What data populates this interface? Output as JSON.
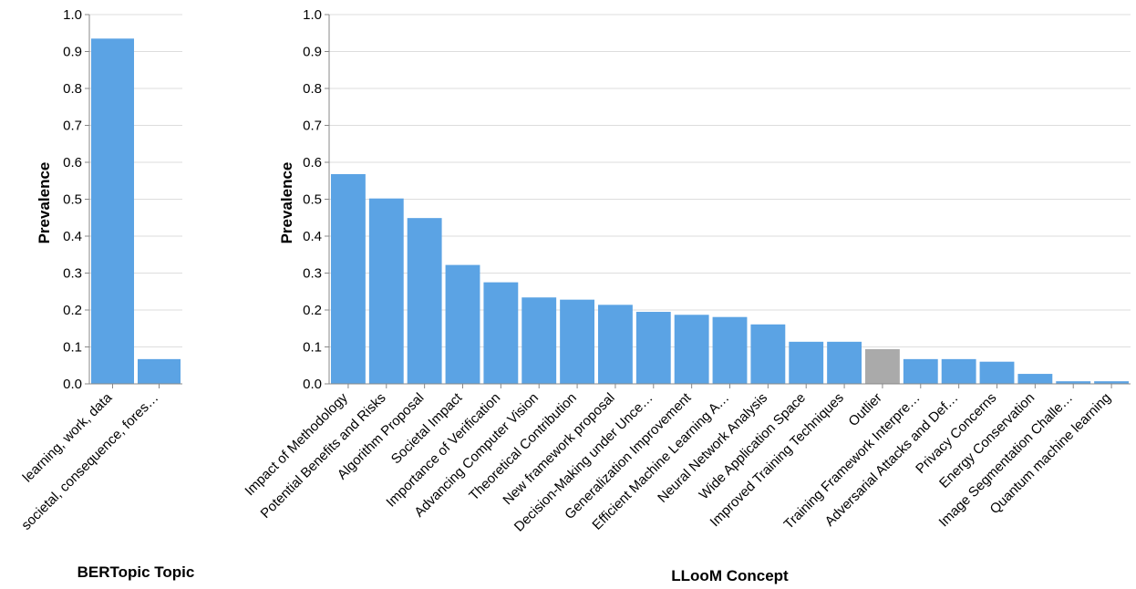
{
  "chart_data": [
    {
      "type": "bar",
      "xlabel": "BERTopic Topic",
      "ylabel": "Prevalence",
      "ylim": [
        0,
        1
      ],
      "y_ticks": [
        "0.0",
        "0.1",
        "0.2",
        "0.3",
        "0.4",
        "0.5",
        "0.6",
        "0.7",
        "0.8",
        "0.9",
        "1.0"
      ],
      "grid": true,
      "categories": [
        "learning, work, data",
        "societal, consequence, fores…"
      ],
      "values": [
        0.935,
        0.067
      ],
      "bar_colors": [
        "#5ba3e4",
        "#5ba3e4"
      ]
    },
    {
      "type": "bar",
      "xlabel": "LLooM Concept",
      "ylabel": "Prevalence",
      "ylim": [
        0,
        1
      ],
      "y_ticks": [
        "0.0",
        "0.1",
        "0.2",
        "0.3",
        "0.4",
        "0.5",
        "0.6",
        "0.7",
        "0.8",
        "0.9",
        "1.0"
      ],
      "grid": true,
      "categories": [
        "Impact of Methodology",
        "Potential Benefits and Risks",
        "Algorithm Proposal",
        "Societal Impact",
        "Importance of Verification",
        "Advancing Computer Vision",
        "Theoretical Contribution",
        "New framework proposal",
        "Decision-Making under Unce…",
        "Generalization Improvement",
        "Efficient Machine Learning A…",
        "Neural Network Analysis",
        "Wide Application Space",
        "Improved Training Techniques",
        "Outlier",
        "Training Framework Interpre…",
        "Adversarial Attacks and Def…",
        "Privacy Concerns",
        "Energy Conservation",
        "Image Segmentation Challe…",
        "Quantum machine learning"
      ],
      "values": [
        0.568,
        0.502,
        0.449,
        0.322,
        0.275,
        0.234,
        0.228,
        0.214,
        0.195,
        0.187,
        0.181,
        0.161,
        0.114,
        0.114,
        0.094,
        0.067,
        0.067,
        0.06,
        0.027,
        0.007,
        0.007
      ],
      "bar_colors": [
        "#5ba3e4",
        "#5ba3e4",
        "#5ba3e4",
        "#5ba3e4",
        "#5ba3e4",
        "#5ba3e4",
        "#5ba3e4",
        "#5ba3e4",
        "#5ba3e4",
        "#5ba3e4",
        "#5ba3e4",
        "#5ba3e4",
        "#5ba3e4",
        "#5ba3e4",
        "#aaaaaa",
        "#5ba3e4",
        "#5ba3e4",
        "#5ba3e4",
        "#5ba3e4",
        "#5ba3e4",
        "#5ba3e4"
      ]
    }
  ],
  "colors": {
    "bar": "#5ba3e4",
    "outlier_bar": "#aaaaaa",
    "grid": "#dddddd",
    "axis": "#888888"
  }
}
